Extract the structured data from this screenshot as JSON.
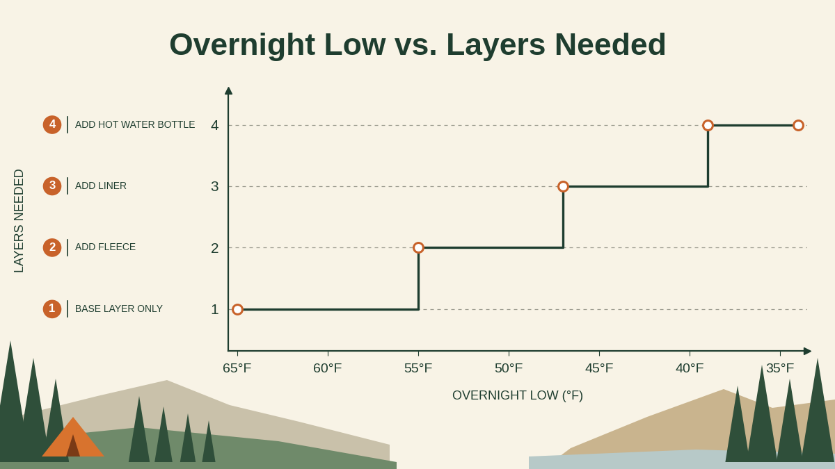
{
  "chart_data": {
    "type": "step",
    "title": "Overnight Low vs. Layers Needed",
    "x_label": "OVERNIGHT LOW (°F)",
    "y_label": "LAYERS NEEDED",
    "x": [
      65,
      55,
      47,
      39,
      34
    ],
    "values": [
      1,
      2,
      3,
      4,
      4
    ],
    "color": "#1e3d2f",
    "marker": "o",
    "line_style": "solid",
    "xlim": [
      65.5,
      33.5
    ],
    "xticks": [
      {
        "value": 65,
        "label": "65°F"
      },
      {
        "value": 60,
        "label": "60°F"
      },
      {
        "value": 55,
        "label": "55°F"
      },
      {
        "value": 50,
        "label": "50°F"
      },
      {
        "value": 45,
        "label": "45°F"
      },
      {
        "value": 40,
        "label": "40°F"
      },
      {
        "value": 35,
        "label": "35°F"
      }
    ],
    "ylim": [
      0.32,
      4.56
    ],
    "yticks": [
      1,
      2,
      3,
      4
    ],
    "grid": true,
    "annotations": [
      {
        "y": 1,
        "label": "BASE LAYER ONLY"
      },
      {
        "y": 2,
        "label": "ADD FLEECE"
      },
      {
        "y": 3,
        "label": "ADD LINER"
      },
      {
        "y": 4,
        "label": "ADD HOT WATER BOTTLE"
      }
    ]
  }
}
